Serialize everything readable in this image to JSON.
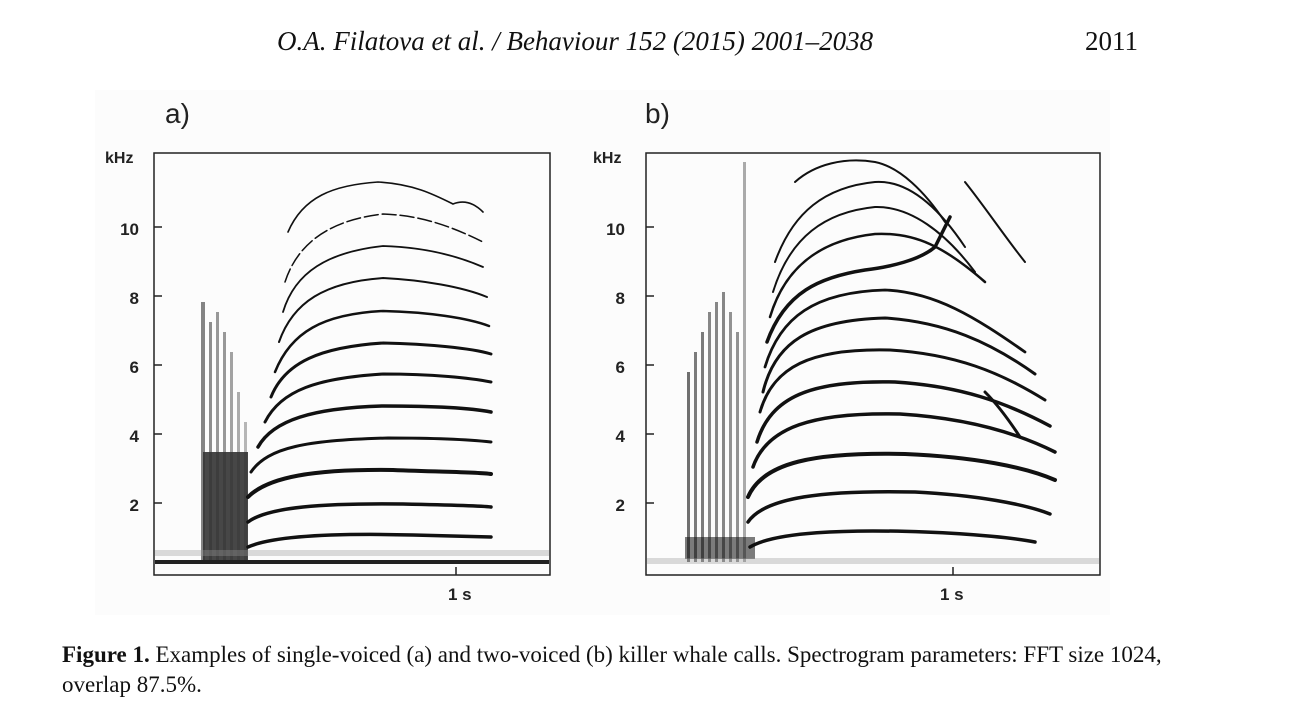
{
  "running_head": {
    "citation": "O.A. Filatova et al. / Behaviour 152 (2015) 2001–2038",
    "page_number": "2011"
  },
  "figure": {
    "panels": [
      {
        "label": "a)",
        "y_unit": "kHz",
        "y_ticks": [
          "2",
          "4",
          "6",
          "8",
          "10"
        ],
        "x_tick": "1 s"
      },
      {
        "label": "b)",
        "y_unit": "kHz",
        "y_ticks": [
          "2",
          "4",
          "6",
          "8",
          "10"
        ],
        "x_tick": "1 s"
      }
    ]
  },
  "caption": {
    "label": "Figure 1.",
    "text": " Examples of single-voiced (a) and two-voiced (b) killer whale calls. Spectrogram parameters: FFT size 1024, overlap 87.5%."
  }
}
